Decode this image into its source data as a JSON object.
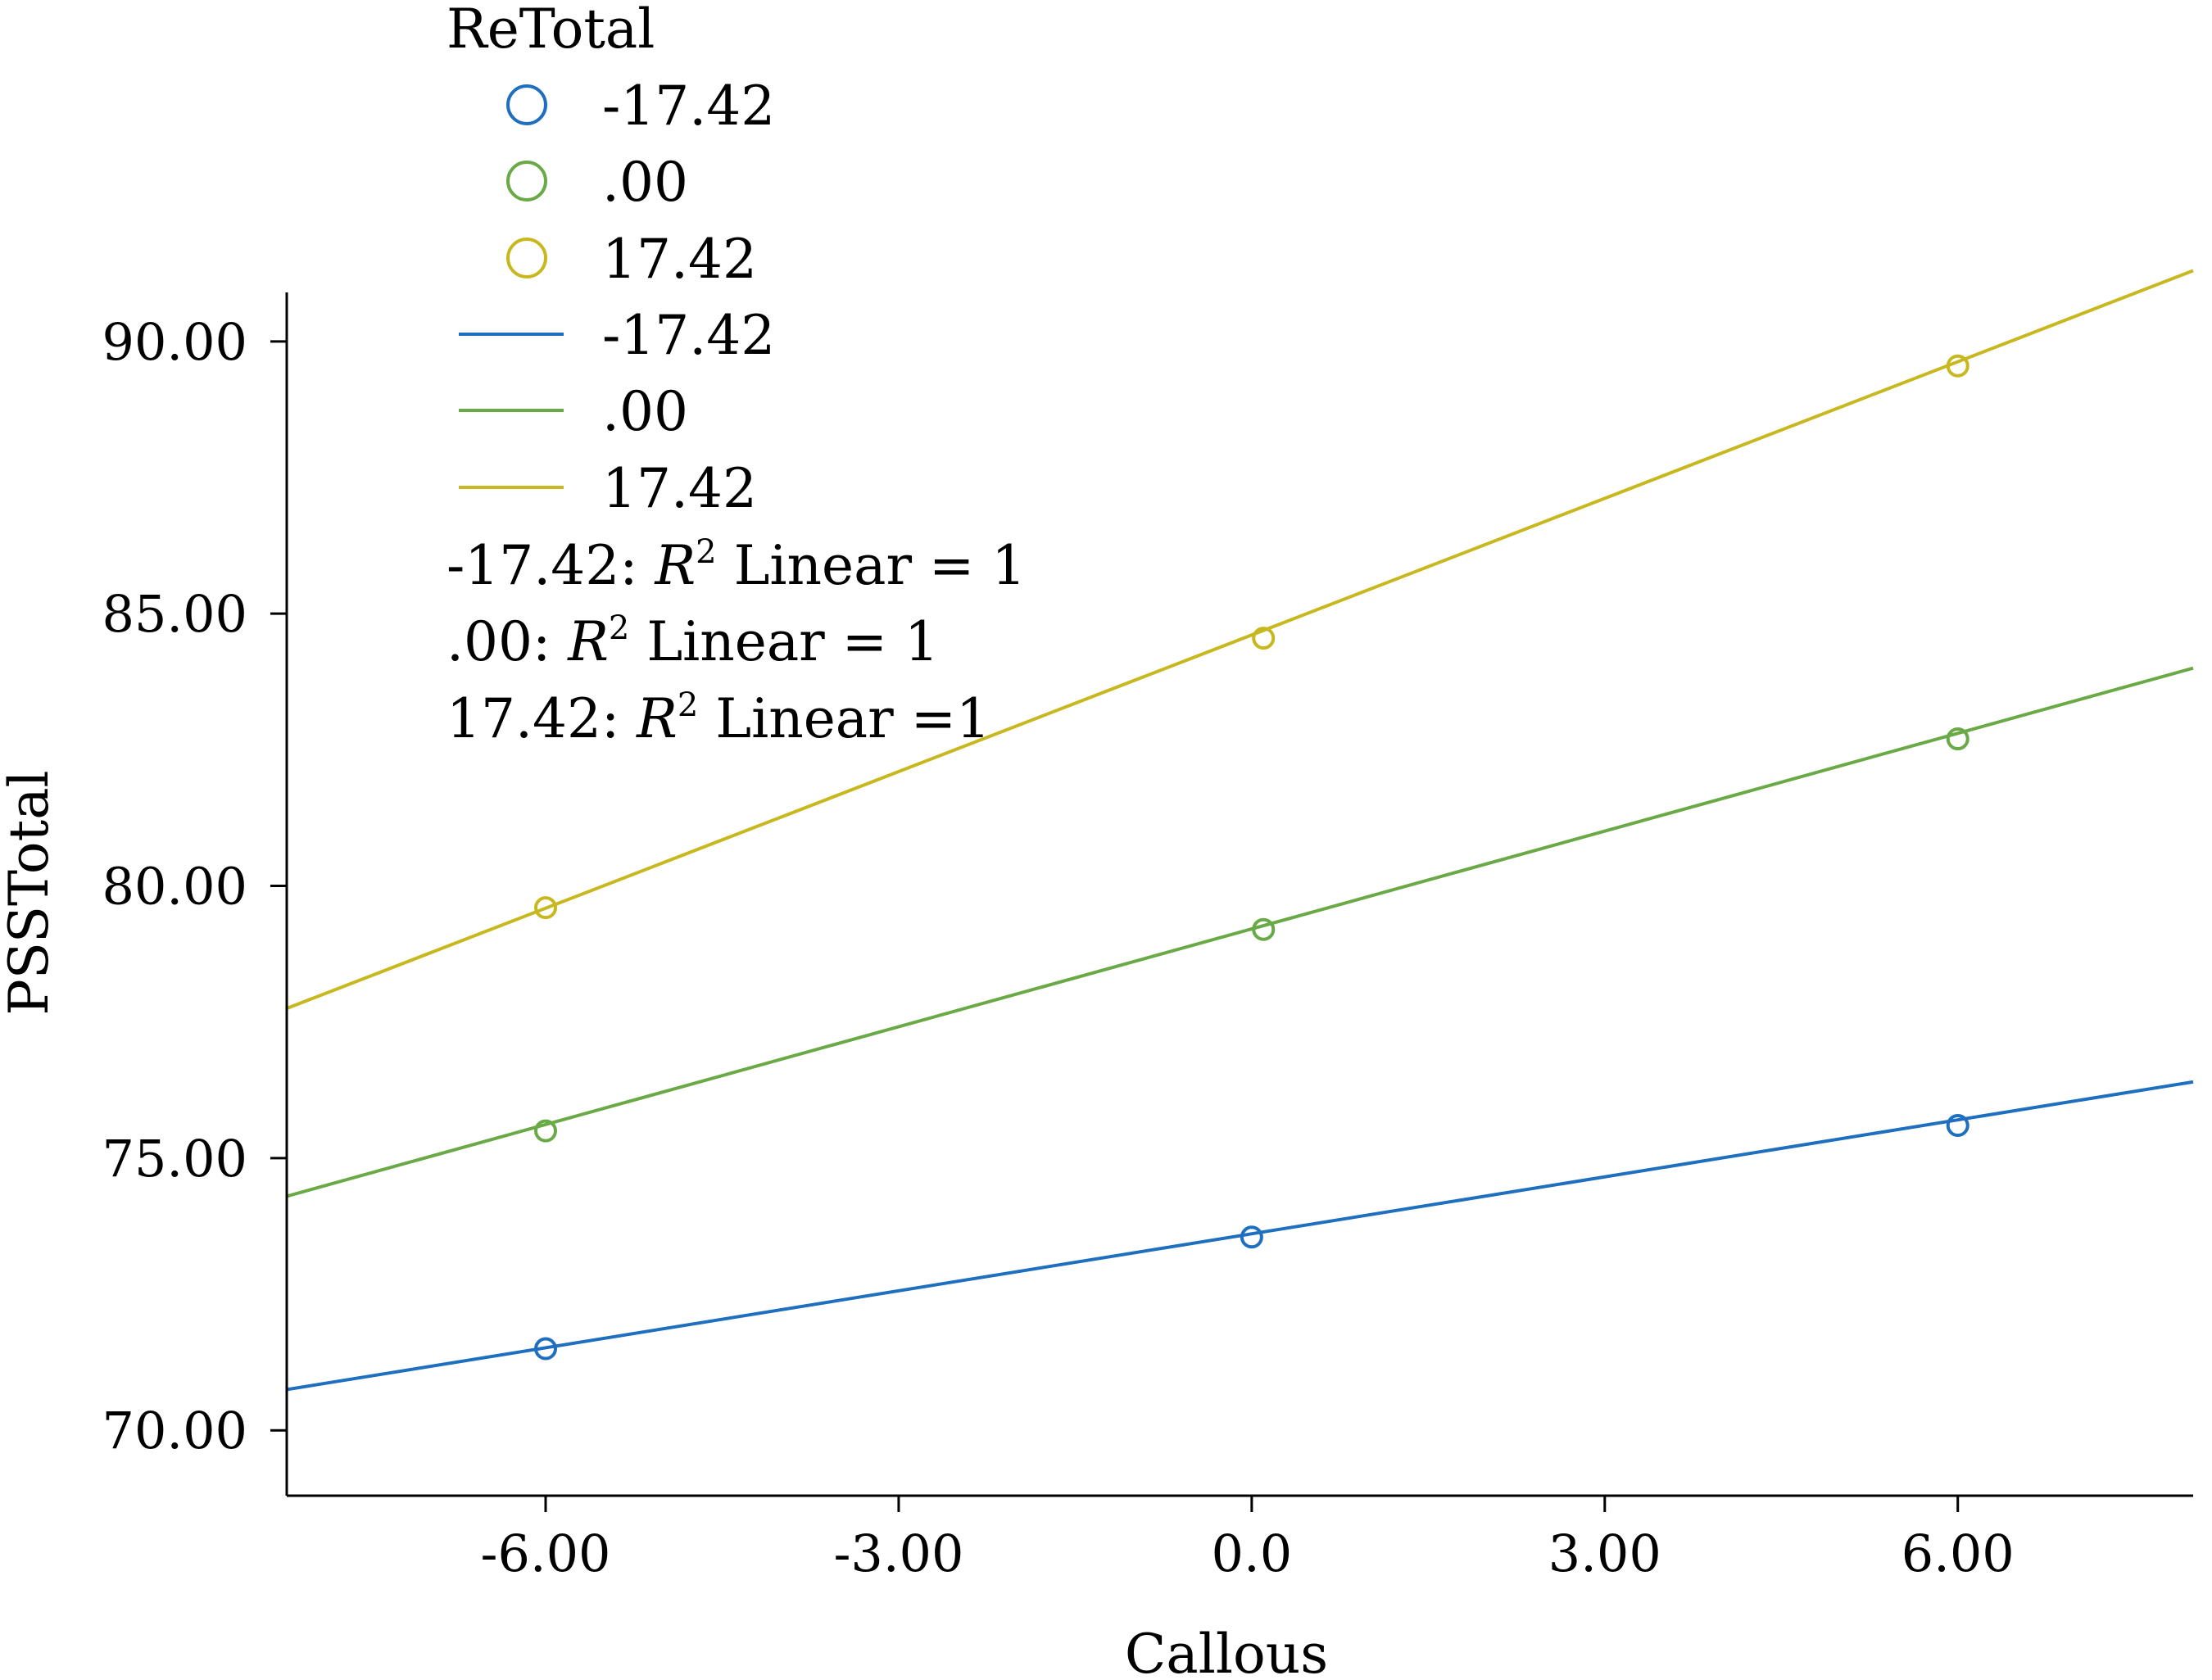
{
  "chart_data": {
    "type": "scatter",
    "xlabel": "Callous",
    "ylabel": "PSSTotal",
    "xlim": [
      -8.2,
      8.0
    ],
    "ylim": [
      68.8,
      90.9
    ],
    "xticks": [
      -6.0,
      -3.0,
      0.0,
      3.0,
      6.0
    ],
    "xtick_labels": [
      "-6.00",
      "-3.00",
      "0.0",
      "3.00",
      "6.00"
    ],
    "yticks": [
      70,
      75,
      80,
      85,
      90
    ],
    "ytick_labels": [
      "70.00",
      "75.00",
      "80.00",
      "85.00",
      "90.00"
    ],
    "legend": {
      "title": "ReTotal",
      "position": "top-left",
      "marker_entries": [
        "-17.42",
        ".00",
        "17.42"
      ],
      "line_entries": [
        "-17.42",
        ".00",
        "17.42"
      ]
    },
    "fit_annotations": [
      {
        "prefix": "-17.42: ",
        "r": "R",
        "sup": "2",
        "suffix": " Linear = 1"
      },
      {
        "prefix": ".00: ",
        "r": "R",
        "sup": "2",
        "suffix": " Linear = 1"
      },
      {
        "prefix": "17.42: ",
        "r": "R",
        "sup": "2",
        "suffix": " Linear =1"
      }
    ],
    "series": [
      {
        "name": "-17.42",
        "color": "#1f6fc0",
        "points": [
          [
            -6.0,
            71.5
          ],
          [
            0.0,
            73.55
          ],
          [
            6.0,
            75.6
          ]
        ],
        "line": {
          "x": [
            -8.2,
            8.0
          ],
          "y": [
            70.75,
            76.4
          ]
        }
      },
      {
        "name": ".00",
        "color": "#6aaa46",
        "points": [
          [
            -6.0,
            75.5
          ],
          [
            0.1,
            79.2
          ],
          [
            6.0,
            82.7
          ]
        ],
        "line": {
          "x": [
            -8.2,
            8.0
          ],
          "y": [
            74.3,
            84.0
          ]
        }
      },
      {
        "name": "17.42",
        "color": "#c8b820",
        "points": [
          [
            -6.0,
            79.6
          ],
          [
            0.1,
            84.55
          ],
          [
            6.0,
            89.55
          ]
        ],
        "line": {
          "x": [
            -8.2,
            8.0
          ],
          "y": [
            77.75,
            91.3
          ]
        }
      }
    ]
  }
}
